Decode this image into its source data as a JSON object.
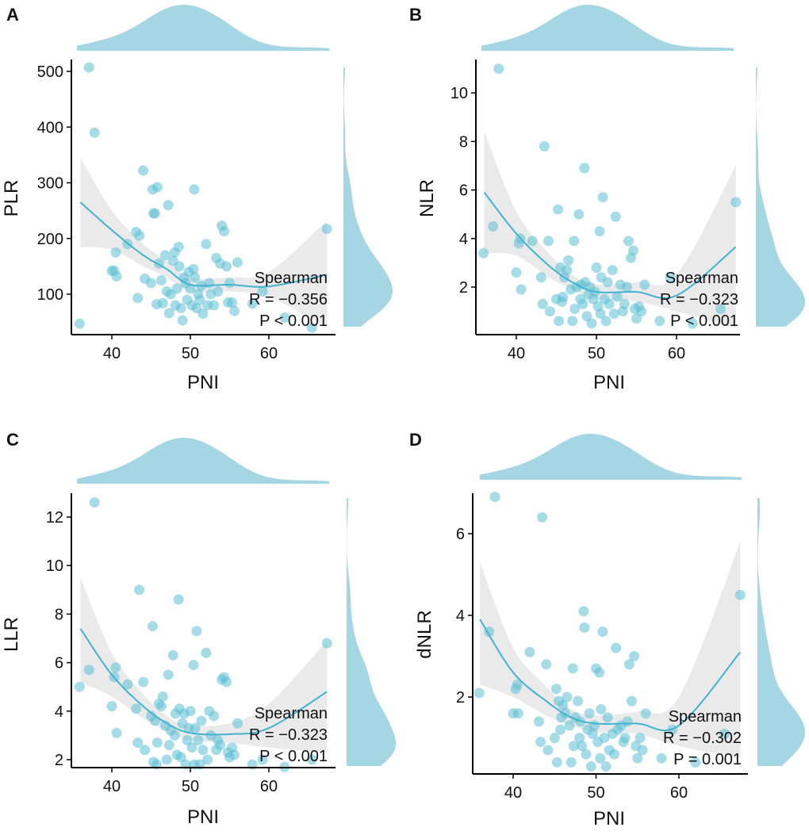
{
  "colors": {
    "point": "#5bbfd6",
    "fit_line": "#3fb3d0",
    "ci_band": "#e3e3e3",
    "density": "#a4d6e3"
  },
  "chart_data": [
    {
      "panel": "A",
      "type": "scatter",
      "xlabel": "PNI",
      "ylabel": "PLR",
      "xticks": [
        40,
        50,
        60
      ],
      "yticks": [
        100,
        200,
        300,
        400,
        500
      ],
      "xlim": [
        35,
        68
      ],
      "ylim": [
        27,
        521
      ],
      "grid": false,
      "marginal": "density",
      "stats": {
        "method": "Spearman",
        "r_label": "R = −0.356",
        "p_label": "P < 0.001"
      },
      "x": [
        35.9,
        37.1,
        37.8,
        40.0,
        40.3,
        40.5,
        40.6,
        42.0,
        43.1,
        43.3,
        43.5,
        44.0,
        44.2,
        45.0,
        45.2,
        45.3,
        45.5,
        45.7,
        45.8,
        46.0,
        46.3,
        46.5,
        46.8,
        47.0,
        47.2,
        47.3,
        47.5,
        47.8,
        48.0,
        48.1,
        48.3,
        48.5,
        48.6,
        48.8,
        49.0,
        49.2,
        49.4,
        49.6,
        49.8,
        50.0,
        50.2,
        50.4,
        50.5,
        50.6,
        50.8,
        51.0,
        51.2,
        51.4,
        51.6,
        52.0,
        52.2,
        52.4,
        52.6,
        53.0,
        53.3,
        53.5,
        53.8,
        54.0,
        54.3,
        54.6,
        54.8,
        55.0,
        55.3,
        55.6,
        56.0,
        57.9,
        59.2,
        62.0,
        65.5,
        67.4
      ],
      "y": [
        47,
        507,
        390,
        142,
        142,
        175,
        132,
        190,
        212,
        93,
        205,
        322,
        128,
        120,
        288,
        245,
        245,
        82,
        292,
        155,
        125,
        84,
        170,
        105,
        260,
        66,
        100,
        160,
        175,
        80,
        110,
        185,
        150,
        75,
        53,
        130,
        120,
        90,
        140,
        110,
        80,
        145,
        288,
        130,
        75,
        100,
        90,
        115,
        65,
        190,
        80,
        120,
        100,
        80,
        165,
        105,
        155,
        223,
        213,
        150,
        85,
        120,
        85,
        70,
        157,
        83,
        105,
        58,
        40,
        217
      ],
      "fit": {
        "x": [
          36,
          40,
          44,
          47,
          50,
          55,
          60,
          67.4
        ],
        "y": [
          265,
          215,
          170,
          145,
          117,
          117,
          114,
          135
        ],
        "lower": [
          185,
          180,
          150,
          130,
          105,
          105,
          95,
          40
        ],
        "upper": [
          345,
          250,
          190,
          160,
          130,
          130,
          140,
          232
        ]
      }
    },
    {
      "panel": "B",
      "type": "scatter",
      "xlabel": "PNI",
      "ylabel": "NLR",
      "xticks": [
        40,
        50,
        60
      ],
      "yticks": [
        2,
        4,
        6,
        8,
        10
      ],
      "xlim": [
        35,
        68
      ],
      "ylim": [
        0.2,
        11.5
      ],
      "grid": false,
      "marginal": "density",
      "stats": {
        "method": "Spearman",
        "r_label": "R = −0.323",
        "p_label": "P < 0.001"
      },
      "y": [
        3.4,
        4.5,
        11.0,
        2.6,
        3.8,
        4.0,
        1.9,
        3.9,
        2.4,
        1.3,
        7.8,
        3.9,
        1.0,
        1.5,
        5.2,
        0.6,
        2.8,
        1.4,
        1.6,
        2.4,
        2.7,
        3.1,
        1.9,
        0.6,
        3.9,
        1.1,
        2.0,
        5.0,
        1.5,
        2.1,
        1.3,
        6.9,
        2.2,
        0.8,
        1.7,
        2.0,
        0.5,
        1.5,
        1.8,
        2.8,
        1.2,
        4.3,
        0.9,
        2.4,
        5.7,
        1.5,
        0.6,
        2.2,
        1.3,
        2.7,
        0.9,
        4.9,
        1.6,
        2.1,
        1.0,
        1.3,
        2.0,
        3.9,
        3.2,
        3.5,
        1.1,
        0.7,
        1.2,
        1.0,
        2.1,
        0.6,
        2.4,
        0.5,
        1.1,
        5.5
      ],
      "fit": {
        "x": [
          36,
          40,
          44,
          47,
          50,
          55,
          60,
          67.4
        ],
        "y": [
          5.9,
          4.2,
          2.9,
          2.2,
          1.8,
          1.8,
          1.65,
          3.65
        ],
        "lower": [
          3.4,
          3.3,
          2.4,
          1.9,
          1.5,
          1.4,
          1.0,
          0.3
        ],
        "upper": [
          8.4,
          5.1,
          3.4,
          2.5,
          2.1,
          2.2,
          2.5,
          7.0
        ]
      }
    },
    {
      "panel": "C",
      "type": "scatter",
      "xlabel": "PNI",
      "ylabel": "LLR",
      "xticks": [
        40,
        50,
        60
      ],
      "yticks": [
        2,
        4,
        6,
        8,
        10,
        12
      ],
      "xlim": [
        35,
        68
      ],
      "ylim": [
        1.3,
        13.0
      ],
      "grid": false,
      "marginal": "density",
      "stats": {
        "method": "Spearman",
        "r_label": "R = −0.323",
        "p_label": "P < 0.001"
      },
      "y": [
        5.0,
        5.7,
        12.6,
        4.2,
        5.4,
        5.8,
        3.1,
        5.1,
        4.1,
        2.7,
        9.0,
        5.2,
        2.4,
        3.8,
        7.5,
        1.9,
        3.6,
        1.8,
        2.7,
        4.3,
        4.2,
        4.6,
        3.4,
        2.0,
        5.5,
        2.6,
        3.2,
        6.3,
        3.0,
        3.9,
        2.2,
        8.6,
        4.1,
        2.1,
        3.5,
        3.9,
        1.8,
        2.8,
        3.3,
        4.0,
        2.5,
        5.9,
        1.8,
        3.3,
        7.3,
        2.8,
        1.8,
        3.6,
        2.4,
        6.4,
        2.0,
        4.0,
        3.0,
        3.8,
        2.4,
        2.8,
        2.6,
        5.3,
        5.4,
        5.2,
        2.3,
        2.1,
        2.5,
        2.2,
        3.5,
        1.8,
        2.0,
        1.7,
        2.0,
        6.8
      ],
      "fit": {
        "x": [
          36,
          40,
          44,
          47,
          50,
          55,
          60,
          67.4
        ],
        "y": [
          7.4,
          5.5,
          4.2,
          3.5,
          3.1,
          3.05,
          3.3,
          4.8
        ],
        "lower": [
          5.2,
          4.6,
          3.7,
          3.2,
          2.8,
          2.7,
          2.5,
          2.3
        ],
        "upper": [
          9.5,
          6.4,
          4.7,
          3.8,
          3.4,
          3.5,
          4.3,
          6.9
        ]
      }
    },
    {
      "panel": "D",
      "type": "scatter",
      "xlabel": "PNI",
      "ylabel": "dNLR",
      "xticks": [
        40,
        50,
        60
      ],
      "yticks": [
        2,
        4,
        6
      ],
      "xlim": [
        35,
        68
      ],
      "ylim": [
        0.2,
        7.0
      ],
      "grid": false,
      "marginal": "density",
      "stats": {
        "method": "Spearman",
        "r_label": "R = −0.302",
        "p_label": "P = 0.001"
      },
      "y": [
        2.1,
        3.6,
        6.9,
        1.6,
        2.2,
        2.3,
        1.6,
        3.1,
        1.4,
        0.9,
        6.4,
        2.8,
        0.7,
        1.0,
        2.2,
        0.4,
        1.9,
        1.2,
        1.5,
        1.8,
        1.6,
        2.0,
        1.3,
        0.4,
        2.7,
        0.8,
        1.5,
        1.9,
        1.0,
        1.4,
        0.8,
        4.1,
        3.7,
        0.6,
        1.2,
        1.6,
        0.3,
        1.1,
        1.3,
        2.7,
        0.9,
        2.6,
        0.5,
        1.7,
        3.6,
        1.0,
        0.3,
        1.5,
        0.7,
        1.1,
        0.6,
        3.2,
        1.2,
        1.3,
        0.9,
        1.0,
        1.4,
        2.8,
        1.9,
        3.0,
        0.8,
        0.5,
        1.0,
        0.7,
        1.6,
        0.5,
        1.2,
        0.4,
        1.1,
        4.5
      ],
      "fit": {
        "x": [
          36,
          40,
          44,
          47,
          50,
          55,
          60,
          67.4
        ],
        "y": [
          3.9,
          2.6,
          1.9,
          1.5,
          1.35,
          1.35,
          1.3,
          3.1
        ],
        "lower": [
          2.3,
          2.0,
          1.55,
          1.3,
          1.15,
          1.1,
          0.8,
          0.5
        ],
        "upper": [
          5.3,
          3.2,
          2.25,
          1.7,
          1.55,
          1.65,
          2.0,
          5.8
        ]
      }
    }
  ]
}
